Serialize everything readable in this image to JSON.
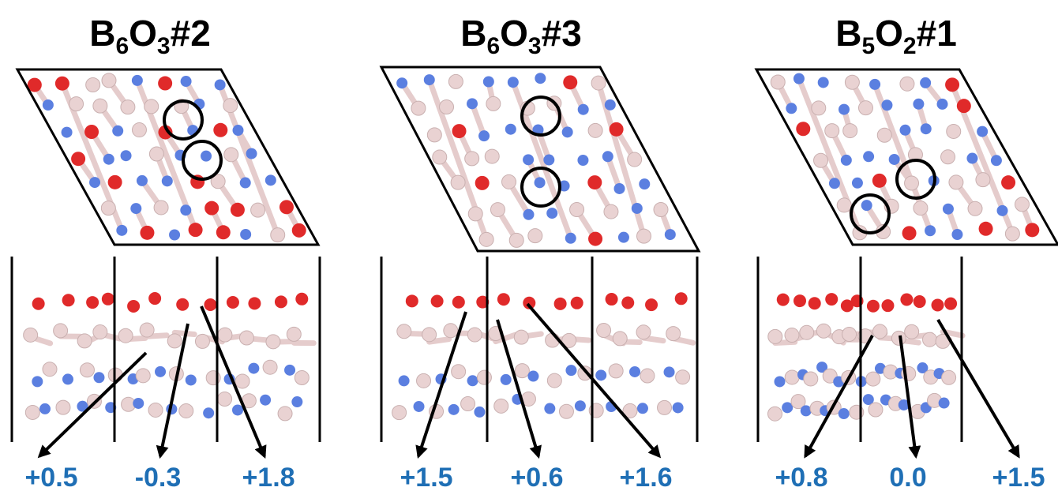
{
  "panels": [
    {
      "title": [
        "B",
        "6",
        "O",
        "3",
        "#2"
      ],
      "charges": [
        "+0.5",
        "-0.3",
        "+1.8"
      ]
    },
    {
      "title": [
        "B",
        "6",
        "O",
        "3",
        "#3"
      ],
      "charges": [
        "+1.5",
        "+0.6",
        "+1.6"
      ]
    },
    {
      "title": [
        "B",
        "5",
        "O",
        "2",
        "#1"
      ],
      "charges": [
        "+0.8",
        "0.0",
        "+1.5"
      ]
    }
  ]
}
